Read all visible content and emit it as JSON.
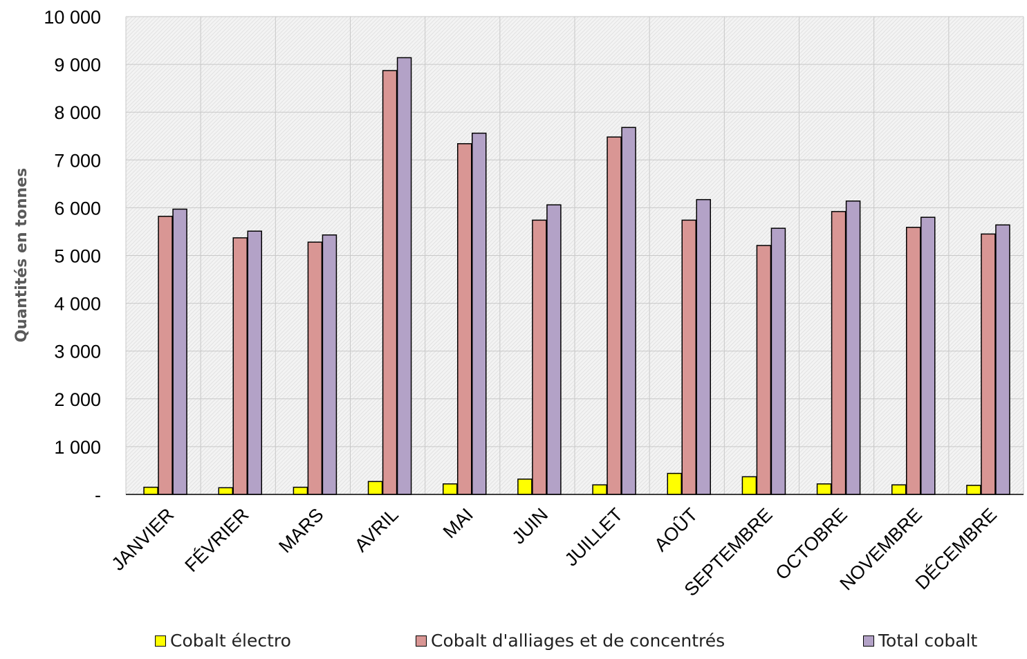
{
  "chart_data": {
    "type": "bar",
    "title": "",
    "xlabel": "",
    "ylabel": "Quantités en tonnes",
    "ylim": [
      0,
      10000
    ],
    "yticks": [
      {
        "value": 0,
        "label": "-"
      },
      {
        "value": 1000,
        "label": "1 000"
      },
      {
        "value": 2000,
        "label": "2 000"
      },
      {
        "value": 3000,
        "label": "3 000"
      },
      {
        "value": 4000,
        "label": "4 000"
      },
      {
        "value": 5000,
        "label": "5 000"
      },
      {
        "value": 6000,
        "label": "6 000"
      },
      {
        "value": 7000,
        "label": "7 000"
      },
      {
        "value": 8000,
        "label": "8 000"
      },
      {
        "value": 9000,
        "label": "9 000"
      },
      {
        "value": 10000,
        "label": "10 000"
      }
    ],
    "categories": [
      "JANVIER",
      "FÉVRIER",
      "MARS",
      "AVRIL",
      "MAI",
      "JUIN",
      "JUILLET",
      "AOÛT",
      "SEPTEMBRE",
      "OCTOBRE",
      "NOVEMBRE",
      "DÉCEMBRE"
    ],
    "series": [
      {
        "name": "Cobalt électro",
        "color": "#FFFF00",
        "values": [
          150,
          140,
          150,
          270,
          220,
          320,
          200,
          440,
          370,
          220,
          200,
          190
        ]
      },
      {
        "name": "Cobalt d'alliages et de concentrés",
        "color": "#D99694",
        "values": [
          5820,
          5370,
          5280,
          8870,
          7340,
          5740,
          7480,
          5740,
          5210,
          5920,
          5590,
          5450
        ]
      },
      {
        "name": "Total cobalt",
        "color": "#B3A2C7",
        "values": [
          5970,
          5510,
          5430,
          9140,
          7560,
          6060,
          7680,
          6170,
          5570,
          6140,
          5800,
          5640
        ]
      }
    ],
    "grid": true,
    "legend_position": "bottom",
    "plot_background": "hatched light gray"
  }
}
